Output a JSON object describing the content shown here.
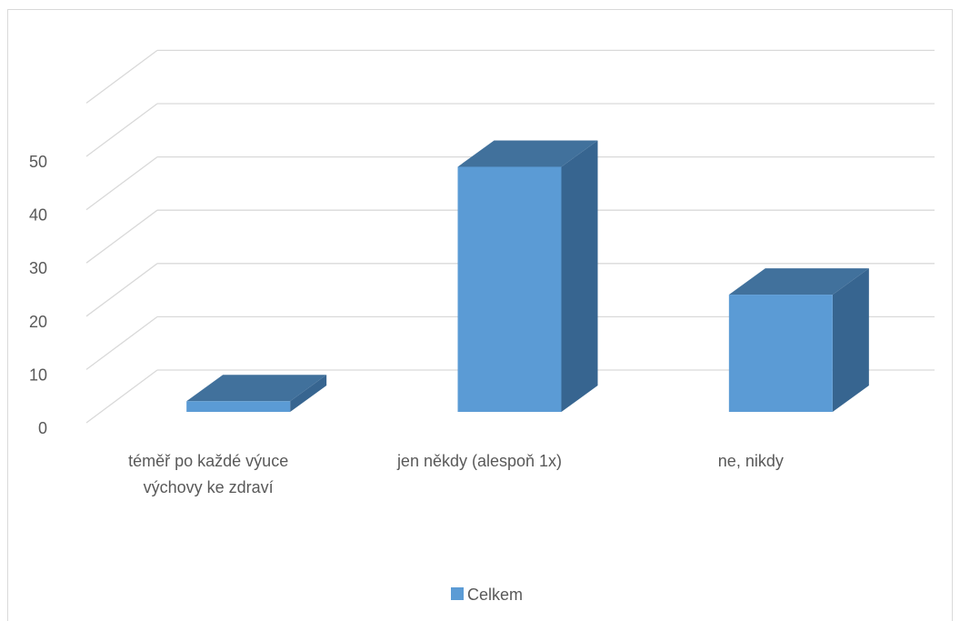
{
  "chart_data": {
    "type": "bar",
    "style": "3d-column",
    "categories": [
      [
        "téměř po každé výuce",
        "výchovy ke zdraví"
      ],
      [
        "jen někdy (alespoň 1x)"
      ],
      [
        "ne, nikdy"
      ]
    ],
    "series": [
      {
        "name": "Celkem",
        "values": [
          2,
          46,
          22
        ]
      }
    ],
    "yticks": [
      0,
      10,
      20,
      30,
      40,
      50
    ],
    "ylim": [
      0,
      60
    ],
    "grid": true,
    "legend_position": "bottom",
    "colors": {
      "front": "#5b9bd5",
      "top": "#41719c",
      "side": "#376590",
      "grid": "#d9d9d9",
      "text": "#595959"
    }
  }
}
